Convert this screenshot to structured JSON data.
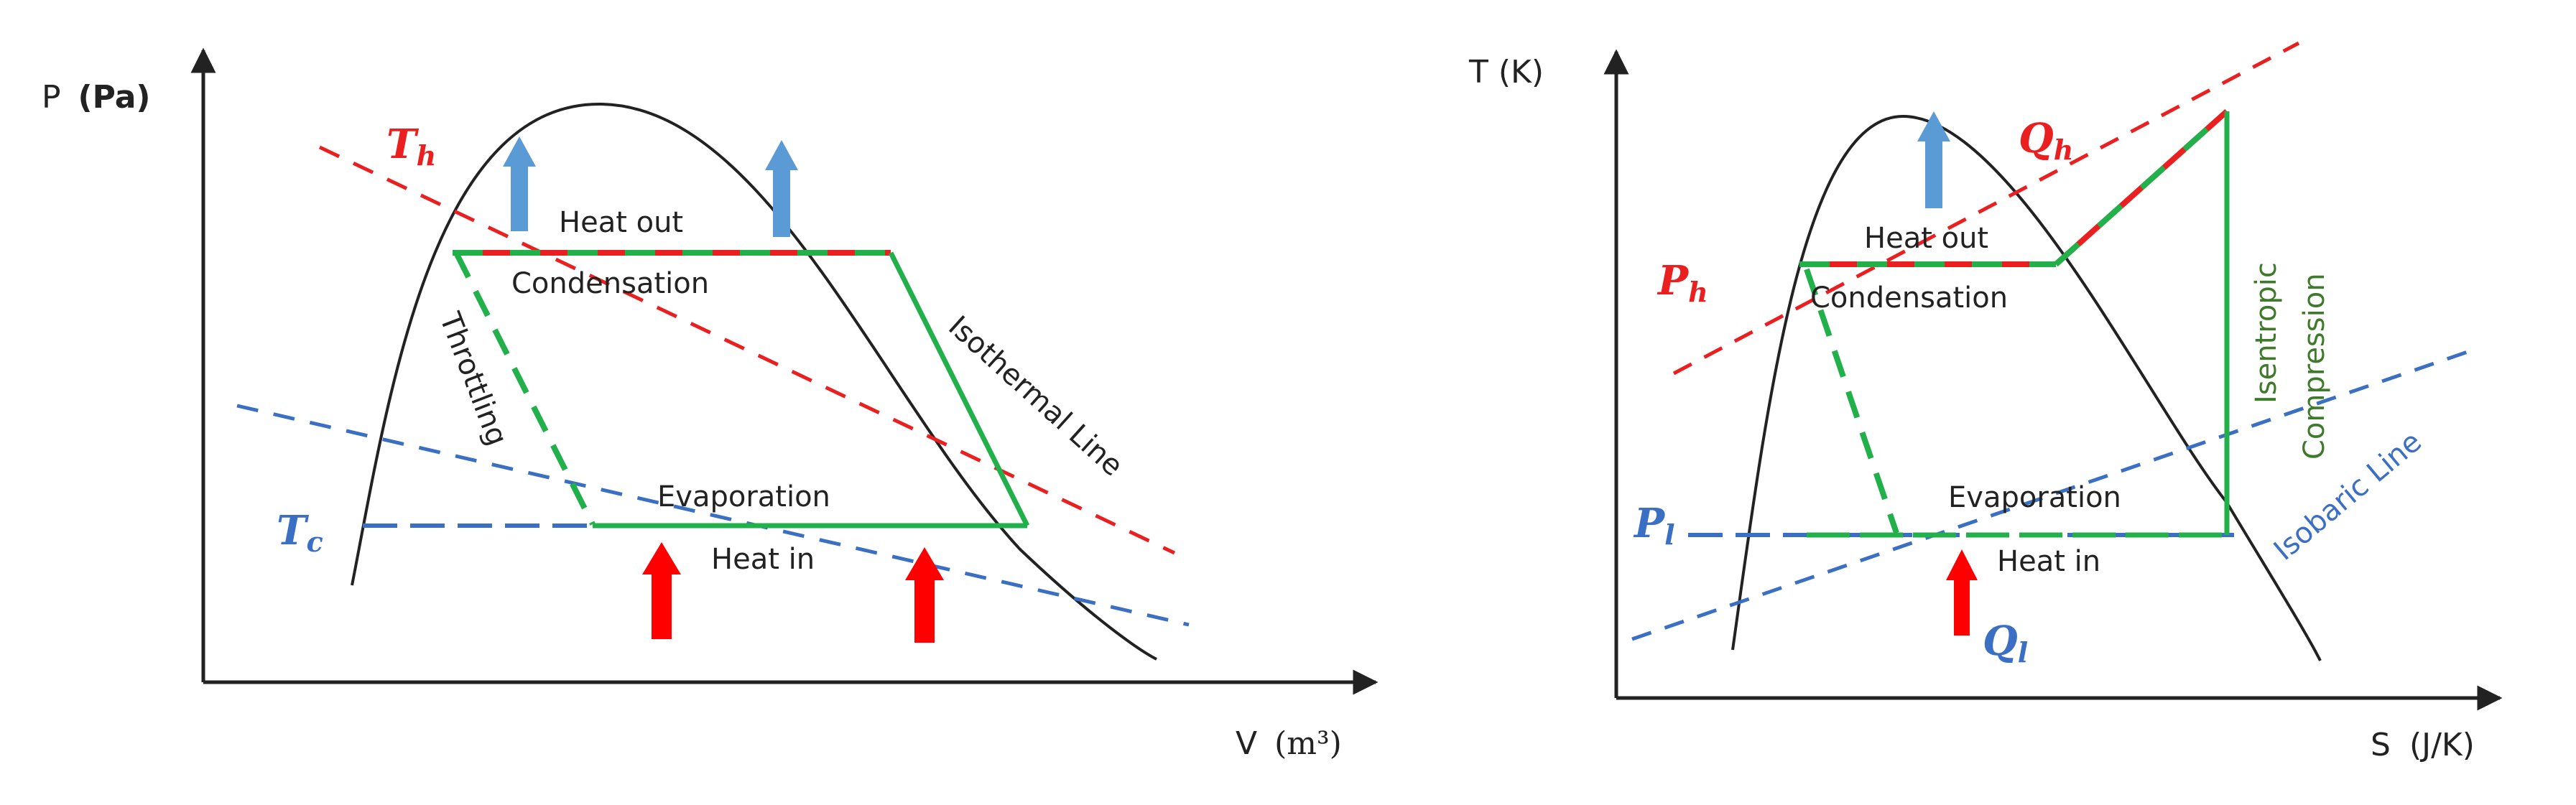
{
  "pv": {
    "y_axis": {
      "prefix": "P",
      "unit": "(Pa)"
    },
    "x_axis": {
      "prefix": "V",
      "unit": "(m³)"
    },
    "t_hot": {
      "main": "T",
      "sub": "h"
    },
    "t_cold": {
      "main": "T",
      "sub": "c"
    },
    "heat_out": "Heat out",
    "condensation": "Condensation",
    "throttling": "Throttling",
    "isothermal_line": "Isothermal Line",
    "evaporation": "Evaporation",
    "heat_in": "Heat in"
  },
  "ts": {
    "y_axis": {
      "prefix": "T",
      "unit": "(K)"
    },
    "x_axis": {
      "prefix": "S",
      "unit": "(J/K)"
    },
    "q_hot": {
      "main": "Q",
      "sub": "h"
    },
    "p_hot": {
      "main": "P",
      "sub": "h"
    },
    "p_low": {
      "main": "P",
      "sub": "l"
    },
    "q_low": {
      "main": "Q",
      "sub": "l"
    },
    "heat_out": "Heat out",
    "condensation": "Condensation",
    "isentropic": "Isentropic",
    "compression": "Compression",
    "isobaric_line": "Isobaric Line",
    "evaporation": "Evaporation",
    "heat_in": "Heat in"
  },
  "colors": {
    "hot": "#ea1f1f",
    "cold": "#3a6fc4",
    "cycle": "#22b04b",
    "heat_out_arrow": "#5b9bd5",
    "heat_in_arrow": "#ff0000",
    "text_green": "#3f7a2c"
  }
}
